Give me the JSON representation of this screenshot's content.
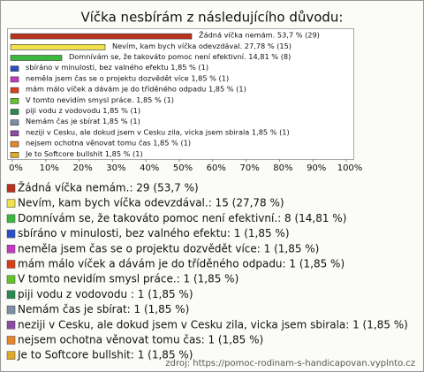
{
  "chart_data": {
    "type": "bar",
    "orientation": "horizontal",
    "title": "Víčka nesbírám z následujícího důvodu:",
    "values": [
      53.7,
      27.78,
      14.81,
      1.85,
      1.85,
      1.85,
      1.85,
      1.85,
      1.85,
      1.85,
      1.85,
      1.85
    ],
    "value_labels": [
      "Žádná víčka nemám. 53,7 % (29)",
      "Nevím, kam bych víčka odevzdával. 27,78 % (15)",
      "Domnívám se, že takováto pomoc není efektivní. 14,81 % (8)",
      "sbíráno v minulosti, bez valného efektu 1,85 % (1)",
      "neměla jsem čas se o projektu dozvědět více 1,85 % (1)",
      "mám málo víček a dávám je do tříděného odpadu 1,85 % (1)",
      "V tomto nevidím smysl práce. 1,85 % (1)",
      "piji vodu z vodovodu  1,85 % (1)",
      "Nemám čas je sbírat 1,85 % (1)",
      "neziji v Cesku, ale dokud jsem v Cesku zila, vicka jsem sbirala 1,85 % (1)",
      "nejsem  ochotna věnovat tomu čas 1,85 % (1)",
      "Je to Softcore bullshit 1,85 % (1)"
    ],
    "legend_labels": [
      "Žádná víčka nemám.: 29 (53,7 %)",
      "Nevím, kam bych víčka odevzdával.: 15 (27,78 %)",
      "Domnívám se, že takováto pomoc není efektivní.: 8 (14,81 %)",
      "sbíráno v minulosti, bez valného efektu: 1 (1,85 %)",
      "neměla jsem čas se o projektu dozvědět více: 1 (1,85 %)",
      "mám málo víček a dávám je do tříděného odpadu: 1 (1,85 %)",
      "V tomto nevidím smysl práce.: 1 (1,85 %)",
      "piji vodu z vodovodu : 1 (1,85 %)",
      "Nemám čas je sbírat: 1 (1,85 %)",
      "neziji v Cesku, ale dokud jsem v Cesku zila, vicka jsem sbirala: 1 (1,85 %)",
      "nejsem  ochotna věnovat tomu čas: 1 (1,85 %)",
      "Je to Softcore bullshit: 1 (1,85 %)"
    ],
    "colors": [
      "#b8321e",
      "#f2e04a",
      "#3cb83c",
      "#2a4fc8",
      "#c23bc2",
      "#d9401a",
      "#62c42a",
      "#2a8a4e",
      "#7c8fa3",
      "#8a4aa6",
      "#e8862a",
      "#e0aa2a"
    ],
    "xlim": [
      0,
      100
    ],
    "xticks": [
      {
        "value": 0,
        "label": "0%"
      },
      {
        "value": 10,
        "label": "10%"
      },
      {
        "value": 20,
        "label": "20%"
      },
      {
        "value": 30,
        "label": "30%"
      },
      {
        "value": 40,
        "label": "40%"
      },
      {
        "value": 50,
        "label": "50%"
      },
      {
        "value": 60,
        "label": "60%"
      },
      {
        "value": 70,
        "label": "70%"
      },
      {
        "value": 80,
        "label": "80%"
      },
      {
        "value": 90,
        "label": "90%"
      },
      {
        "value": 100,
        "label": "100%"
      }
    ],
    "source": "zdroj: https://pomoc-rodinam-s-handicapovan.vyplnto.cz"
  }
}
